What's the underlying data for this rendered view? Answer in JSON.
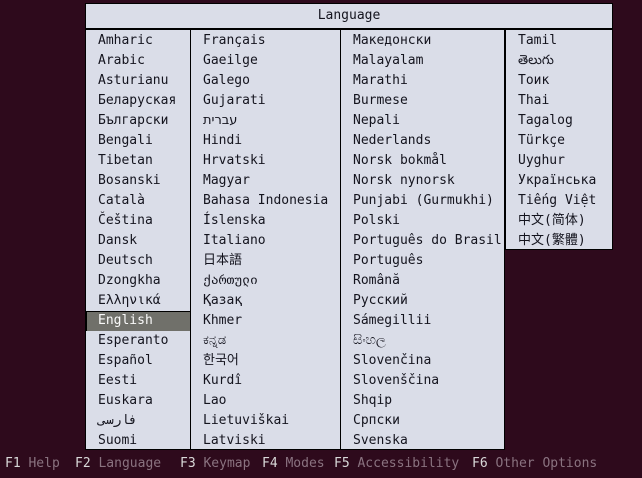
{
  "dialog": {
    "title": "Language"
  },
  "selected_language": "English",
  "columns": [
    {
      "items": [
        "Amharic",
        "Arabic",
        "Asturianu",
        "Беларуская",
        "Български",
        "Bengali",
        "Tibetan",
        "Bosanski",
        "Català",
        "Čeština",
        "Dansk",
        "Deutsch",
        "Dzongkha",
        "Ελληνικά",
        "English",
        "Esperanto",
        "Español",
        "Eesti",
        "Euskara",
        "فارسی",
        "Suomi"
      ]
    },
    {
      "items": [
        "Français",
        "Gaeilge",
        "Galego",
        "Gujarati",
        "עברית",
        "Hindi",
        "Hrvatski",
        "Magyar",
        "Bahasa Indonesia",
        "Íslenska",
        "Italiano",
        "日本語",
        "ქართული",
        "Қазақ",
        "Khmer",
        "ಕನ್ನಡ",
        "한국어",
        "Kurdî",
        "Lao",
        "Lietuviškai",
        "Latviski"
      ]
    },
    {
      "items": [
        "Македонски",
        "Malayalam",
        "Marathi",
        "Burmese",
        "Nepali",
        "Nederlands",
        "Norsk bokmål",
        "Norsk nynorsk",
        "Punjabi (Gurmukhi)",
        "Polski",
        "Português do Brasil",
        "Português",
        "Română",
        "Русский",
        "Sámegillii",
        "සිංහල",
        "Slovenčina",
        "Slovenščina",
        "Shqip",
        "Српски",
        "Svenska"
      ]
    },
    {
      "items": [
        "Tamil",
        "తెలుగు",
        "Тоик",
        "Thai",
        "Tagalog",
        "Türkçe",
        "Uyghur",
        "Українська",
        "Tiếng Việt",
        "中文(简体)",
        "中文(繁體)"
      ]
    }
  ],
  "footer": {
    "items": [
      {
        "key": "F1",
        "label": "Help"
      },
      {
        "key": "F2",
        "label": "Language"
      },
      {
        "key": "F3",
        "label": "Keymap"
      },
      {
        "key": "F4",
        "label": "Modes"
      },
      {
        "key": "F5",
        "label": "Accessibility"
      },
      {
        "key": "F6",
        "label": "Other Options"
      }
    ]
  },
  "colors": {
    "background": "#2e0a1c",
    "panel": "#dadde8",
    "border": "#000000",
    "text": "#14141e",
    "selected_bg": "#70706a",
    "selected_text": "#fafafa",
    "fkey": "#d9d9d9",
    "flabel": "#8a7380"
  }
}
